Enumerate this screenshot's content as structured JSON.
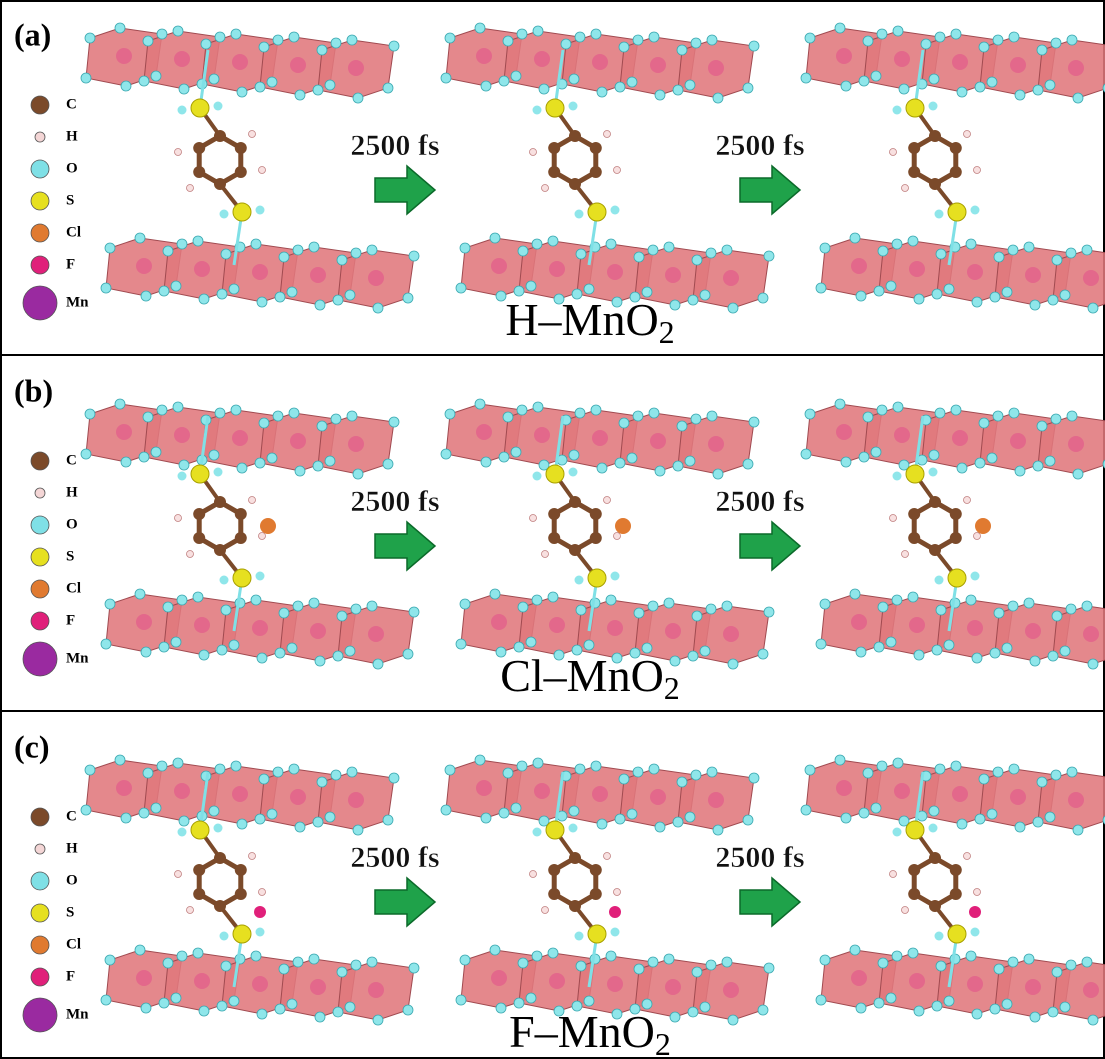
{
  "panels": [
    {
      "label": "(a)",
      "legend": [
        {
          "label": "C",
          "color": "#7b4a2a"
        },
        {
          "label": "H",
          "color": "#f4d6d6"
        },
        {
          "label": "O",
          "color": "#7fe0e6"
        },
        {
          "label": "S",
          "color": "#e6e020"
        },
        {
          "label": "Cl",
          "color": "#e07a30"
        },
        {
          "label": "F",
          "color": "#e0207a"
        },
        {
          "label": "Mn",
          "color": "#9a2aa0"
        }
      ],
      "steps": [
        "2500 fs",
        "2500 fs"
      ],
      "title": {
        "text": "H–MnO",
        "subscript": "2"
      }
    },
    {
      "label": "(b)",
      "legend": [
        {
          "label": "C",
          "color": "#7b4a2a"
        },
        {
          "label": "H",
          "color": "#f4d6d6"
        },
        {
          "label": "O",
          "color": "#7fe0e6"
        },
        {
          "label": "S",
          "color": "#e6e020"
        },
        {
          "label": "Cl",
          "color": "#e07a30"
        },
        {
          "label": "F",
          "color": "#e0207a"
        },
        {
          "label": "Mn",
          "color": "#9a2aa0"
        }
      ],
      "steps": [
        "2500 fs",
        "2500 fs"
      ],
      "title": {
        "text": "Cl–MnO",
        "subscript": "2"
      }
    },
    {
      "label": "(c)",
      "legend": [
        {
          "label": "C",
          "color": "#7b4a2a"
        },
        {
          "label": "H",
          "color": "#f4d6d6"
        },
        {
          "label": "O",
          "color": "#7fe0e6"
        },
        {
          "label": "S",
          "color": "#e6e020"
        },
        {
          "label": "Cl",
          "color": "#e07a30"
        },
        {
          "label": "F",
          "color": "#e0207a"
        },
        {
          "label": "Mn",
          "color": "#9a2aa0"
        }
      ],
      "steps": [
        "2500 fs",
        "2500 fs"
      ],
      "title": {
        "text": "F–MnO",
        "subscript": "2"
      }
    }
  ]
}
